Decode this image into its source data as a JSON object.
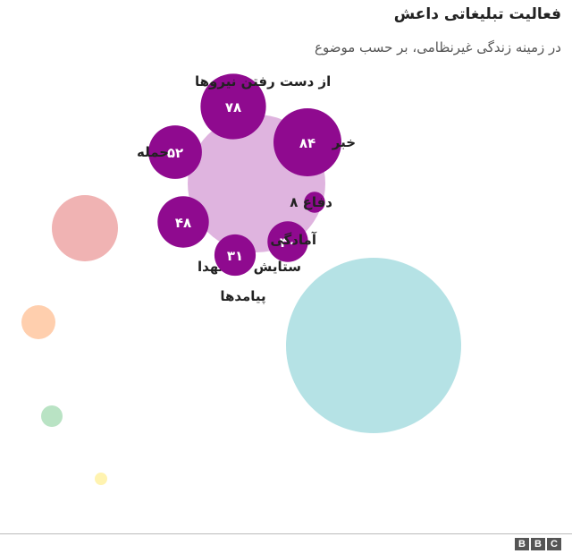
{
  "header": {
    "title": "فعالیت تبلیغاتی داعش",
    "subtitle": "در زمینه زندگی غیرنظامی، بر حسب موضوع"
  },
  "logo": {
    "letters": [
      "B",
      "B",
      "C"
    ]
  },
  "colors": {
    "main_cluster_bg": "#dfb4df",
    "topic_bubble": "#8f0a8f",
    "red_bubble": "#f0b3b3",
    "teal_bubble": "#b5e2e5",
    "orange_bubble": "#ffcfae",
    "green_bubble": "#b9e3c4",
    "yellow_bubble": "#fff3b0",
    "label": "#222222"
  },
  "chart_data": {
    "type": "bubble",
    "title": "فعالیت تبلیغاتی داعش",
    "subtitle": "در زمینه زندگی غیرنظامی، بر حسب موضوع",
    "series": [
      {
        "points": [
          {
            "label": "از دست رفتن نیروها",
            "value": 78,
            "value_label": "۷۸"
          },
          {
            "label": "خبر",
            "value": 84,
            "value_label": "۸۴"
          },
          {
            "label": "حمله",
            "value": 52,
            "value_label": "۵۲"
          },
          {
            "label": "دفاع",
            "value": 8,
            "value_label": "۸"
          },
          {
            "label": "ستایش از شهدا",
            "value": 48,
            "value_label": "۴۸"
          },
          {
            "label": "آمادگی",
            "value": 30,
            "value_label": "۳۰"
          },
          {
            "label": "پیامدها",
            "value": 31,
            "value_label": "۳۱"
          }
        ]
      }
    ]
  }
}
